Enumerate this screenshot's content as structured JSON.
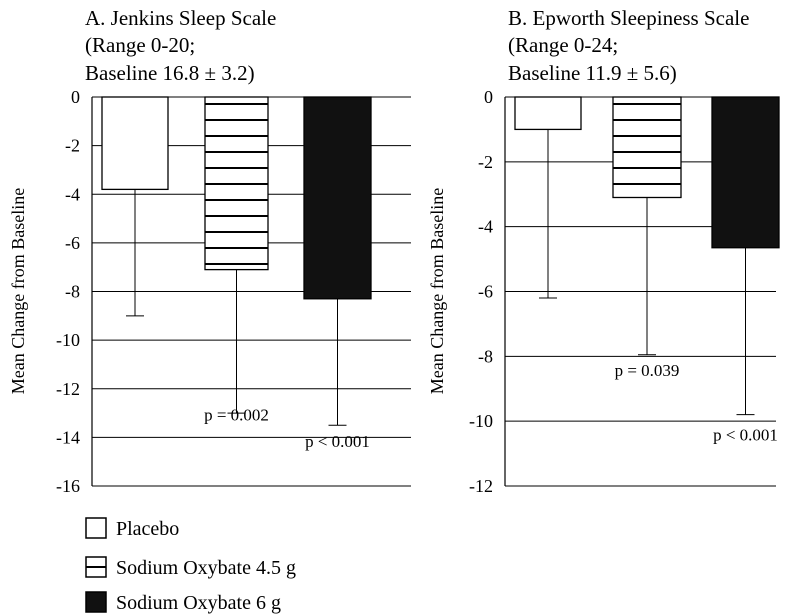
{
  "chart_data": [
    {
      "type": "bar",
      "title_lines": [
        "A.  Jenkins Sleep Scale",
        "(Range 0-20;",
        "Baseline 16.8 ± 3.2)"
      ],
      "ylabel": "Mean Change from Baseline",
      "ylim": [
        -16,
        0
      ],
      "yticks": [
        0,
        -2,
        -4,
        -6,
        -8,
        -10,
        -12,
        -14,
        -16
      ],
      "grid": true,
      "series": [
        {
          "name": "Placebo",
          "value": -3.8,
          "error_low": -9.0
        },
        {
          "name": "Sodium Oxybate 4.5 g",
          "value": -7.1,
          "error_low": -13.0
        },
        {
          "name": "Sodium Oxybate 6 g",
          "value": -8.3,
          "error_low": -13.5
        }
      ],
      "annotations": [
        {
          "text": "p = 0.002",
          "series_index": 1,
          "y": -13.3
        },
        {
          "text": "p < 0.001",
          "series_index": 2,
          "y": -14.4
        }
      ]
    },
    {
      "type": "bar",
      "title_lines": [
        "B.  Epworth Sleepiness Scale",
        "(Range 0-24;",
        "Baseline 11.9 ± 5.6)"
      ],
      "ylabel": "Mean Change from Baseline",
      "ylim": [
        -12,
        0
      ],
      "yticks": [
        0,
        -2,
        -4,
        -6,
        -8,
        -10,
        -12
      ],
      "grid": true,
      "series": [
        {
          "name": "Placebo",
          "value": -1.0,
          "error_low": -6.2
        },
        {
          "name": "Sodium Oxybate 4.5 g",
          "value": -3.1,
          "error_low": -7.95
        },
        {
          "name": "Sodium Oxybate 6 g",
          "value": -4.65,
          "error_low": -9.8
        }
      ],
      "annotations": [
        {
          "text": "p = 0.039",
          "series_index": 1,
          "y": -8.6
        },
        {
          "text": "p < 0.001",
          "series_index": 2,
          "y": -10.6
        }
      ]
    }
  ],
  "legend": {
    "placement": "bottom-left",
    "items": [
      {
        "label": "Placebo",
        "fill": "open"
      },
      {
        "label": "Sodium Oxybate 4.5 g",
        "fill": "horizontal-lines"
      },
      {
        "label": "Sodium Oxybate 6 g",
        "fill": "solid"
      }
    ]
  },
  "colors": {
    "ink": "#000000",
    "bar_solid": "#111111",
    "background": "#ffffff",
    "grid": "#000000"
  }
}
